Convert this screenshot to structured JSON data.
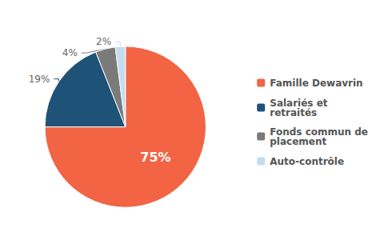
{
  "chart_data": {
    "type": "pie",
    "categories": [
      "Famille Dewavrin",
      "Salariés et\nretraités",
      "Fonds commun de\nplacement",
      "Auto-contrôle"
    ],
    "values": [
      75,
      19,
      4,
      2
    ],
    "value_labels": [
      "75%",
      "19%",
      "4%",
      "2%"
    ],
    "colors": [
      "#F26444",
      "#1E5277",
      "#7A7A7A",
      "#C5DCF0"
    ],
    "data_labels": true,
    "legend": "right"
  }
}
